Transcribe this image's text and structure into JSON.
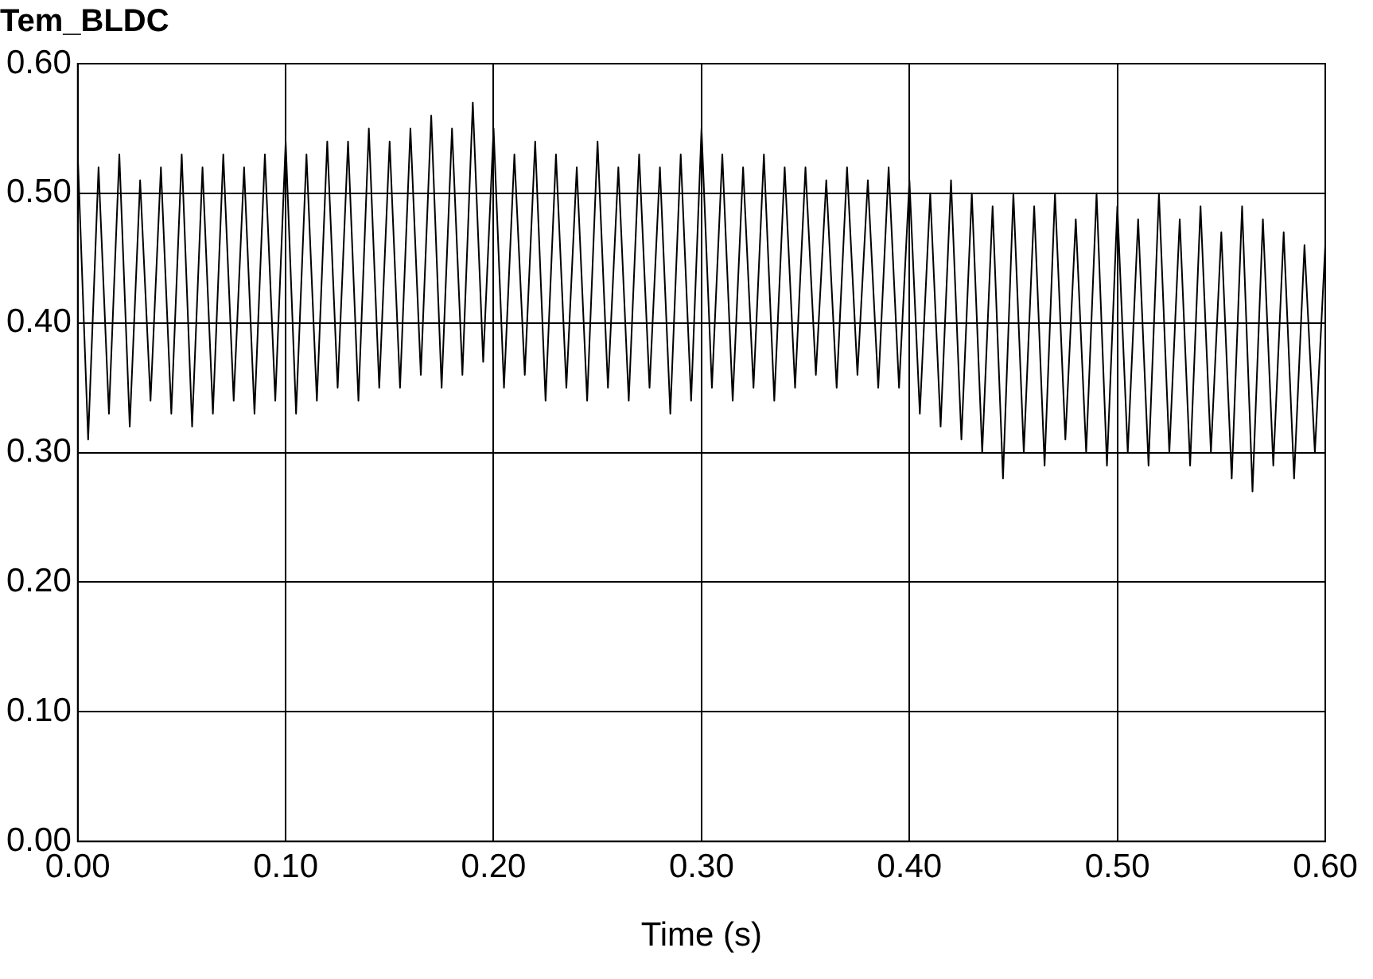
{
  "chart_data": {
    "type": "line",
    "title": "Tem_BLDC",
    "xlabel": "Time (s)",
    "x": [
      0,
      0.005,
      0.01,
      0.015,
      0.02,
      0.025,
      0.03,
      0.035,
      0.04,
      0.045,
      0.05,
      0.055,
      0.06,
      0.065,
      0.07,
      0.075,
      0.08,
      0.085,
      0.09,
      0.095,
      0.1,
      0.105,
      0.11,
      0.115,
      0.12,
      0.125,
      0.13,
      0.135,
      0.14,
      0.145,
      0.15,
      0.155,
      0.16,
      0.165,
      0.17,
      0.175,
      0.18,
      0.185,
      0.19,
      0.195,
      0.2,
      0.205,
      0.21,
      0.215,
      0.22,
      0.225,
      0.23,
      0.235,
      0.24,
      0.245,
      0.25,
      0.255,
      0.26,
      0.265,
      0.27,
      0.275,
      0.28,
      0.285,
      0.29,
      0.295,
      0.3,
      0.305,
      0.31,
      0.315,
      0.32,
      0.325,
      0.33,
      0.335,
      0.34,
      0.345,
      0.35,
      0.355,
      0.36,
      0.365,
      0.37,
      0.375,
      0.38,
      0.385,
      0.39,
      0.395,
      0.4,
      0.405,
      0.41,
      0.415,
      0.42,
      0.425,
      0.43,
      0.435,
      0.44,
      0.445,
      0.45,
      0.455,
      0.46,
      0.465,
      0.47,
      0.475,
      0.48,
      0.485,
      0.49,
      0.495,
      0.5,
      0.505,
      0.51,
      0.515,
      0.52,
      0.525,
      0.53,
      0.535,
      0.54,
      0.545,
      0.55,
      0.555,
      0.56,
      0.565,
      0.57,
      0.575,
      0.58,
      0.585,
      0.59,
      0.595,
      0.6
    ],
    "series": [
      {
        "color": "#000000",
        "values": [
          0.53,
          0.31,
          0.52,
          0.33,
          0.53,
          0.32,
          0.51,
          0.34,
          0.52,
          0.33,
          0.53,
          0.32,
          0.52,
          0.33,
          0.53,
          0.34,
          0.52,
          0.33,
          0.53,
          0.34,
          0.54,
          0.33,
          0.53,
          0.34,
          0.54,
          0.35,
          0.54,
          0.34,
          0.55,
          0.35,
          0.54,
          0.35,
          0.55,
          0.36,
          0.56,
          0.35,
          0.55,
          0.36,
          0.57,
          0.37,
          0.55,
          0.35,
          0.53,
          0.36,
          0.54,
          0.34,
          0.53,
          0.35,
          0.52,
          0.34,
          0.54,
          0.35,
          0.52,
          0.34,
          0.53,
          0.35,
          0.52,
          0.33,
          0.53,
          0.34,
          0.55,
          0.35,
          0.53,
          0.34,
          0.52,
          0.35,
          0.53,
          0.34,
          0.52,
          0.35,
          0.52,
          0.36,
          0.51,
          0.35,
          0.52,
          0.36,
          0.51,
          0.35,
          0.52,
          0.35,
          0.51,
          0.33,
          0.5,
          0.32,
          0.51,
          0.31,
          0.5,
          0.3,
          0.49,
          0.28,
          0.5,
          0.3,
          0.49,
          0.29,
          0.5,
          0.31,
          0.48,
          0.3,
          0.5,
          0.29,
          0.49,
          0.3,
          0.48,
          0.29,
          0.5,
          0.3,
          0.48,
          0.29,
          0.49,
          0.3,
          0.47,
          0.28,
          0.49,
          0.27,
          0.48,
          0.29,
          0.47,
          0.28,
          0.46,
          0.3,
          0.46
        ]
      }
    ],
    "xlim": [
      0,
      0.6
    ],
    "ylim": [
      0,
      0.6
    ],
    "xticks": [
      {
        "value": 0,
        "label": "0.00"
      },
      {
        "value": 0.1,
        "label": "0.10"
      },
      {
        "value": 0.2,
        "label": "0.20"
      },
      {
        "value": 0.3,
        "label": "0.30"
      },
      {
        "value": 0.4,
        "label": "0.40"
      },
      {
        "value": 0.5,
        "label": "0.50"
      },
      {
        "value": 0.6,
        "label": "0.60"
      }
    ],
    "yticks": [
      {
        "value": 0,
        "label": "0.00"
      },
      {
        "value": 0.1,
        "label": "0.10"
      },
      {
        "value": 0.2,
        "label": "0.20"
      },
      {
        "value": 0.3,
        "label": "0.30"
      },
      {
        "value": 0.4,
        "label": "0.40"
      },
      {
        "value": 0.5,
        "label": "0.50"
      },
      {
        "value": 0.6,
        "label": "0.60"
      }
    ],
    "grid": true,
    "marker": "none",
    "line_style": "solid"
  }
}
